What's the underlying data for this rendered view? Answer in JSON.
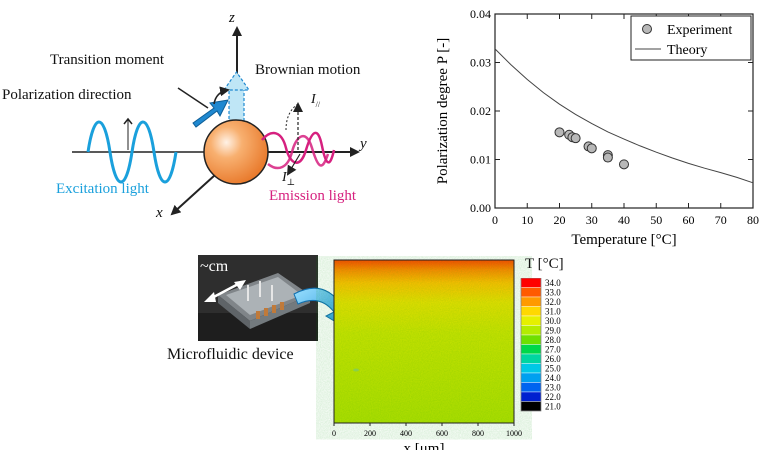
{
  "diagram": {
    "axis_z": "z",
    "axis_y": "y",
    "axis_x": "x",
    "transition_moment": "Transition moment",
    "brownian_motion": "Brownian motion",
    "polarization_direction": "Polarization direction",
    "excitation_light": "Excitation light",
    "emission_light": "Emission light",
    "i_parallel": "I",
    "i_parallel_sub": "//",
    "i_perp": "I",
    "i_perp_sub": "⊥",
    "colors": {
      "excitation": "#1aa0dc",
      "emission": "#d6207f",
      "molecule": "#f08a3c",
      "arrow_blue": "#1f88d0"
    }
  },
  "chart_data": [
    {
      "type": "scatter",
      "title": "",
      "xlabel": "Temperature [°C]",
      "ylabel": "Polarization degree P [-]",
      "xlim": [
        0,
        80
      ],
      "ylim": [
        0,
        0.04
      ],
      "xticks": [
        0,
        10,
        20,
        30,
        40,
        50,
        60,
        70,
        80
      ],
      "yticks": [
        0.0,
        0.01,
        0.02,
        0.03,
        0.04
      ],
      "ytick_labels": [
        "0.00",
        "0.01",
        "0.02",
        "0.03",
        "0.04"
      ],
      "legend_position": "top-right",
      "grid": false,
      "series": [
        {
          "name": "Experiment",
          "type": "scatter",
          "x": [
            20,
            23,
            24,
            25,
            29,
            30,
            35,
            35,
            40
          ],
          "y": [
            0.0156,
            0.0151,
            0.0146,
            0.0144,
            0.0127,
            0.0123,
            0.0109,
            0.0104,
            0.009
          ]
        },
        {
          "name": "Theory",
          "type": "line",
          "x": [
            0,
            5,
            10,
            15,
            20,
            25,
            30,
            35,
            40,
            45,
            50,
            55,
            60,
            65,
            70,
            75,
            80
          ],
          "y": [
            0.0328,
            0.0295,
            0.0265,
            0.0238,
            0.0214,
            0.0193,
            0.0174,
            0.0157,
            0.0142,
            0.0128,
            0.0115,
            0.0103,
            0.0092,
            0.0082,
            0.0073,
            0.0063,
            0.0052
          ]
        }
      ]
    },
    {
      "type": "heatmap",
      "xlabel": "x [μm]",
      "xlim": [
        0,
        1000
      ],
      "xticks": [
        0,
        200,
        400,
        600,
        800,
        1000
      ],
      "colorbar_title": "T [°C]",
      "colorbar_labels": [
        "34.0",
        "33.0",
        "32.0",
        "31.0",
        "30.0",
        "29.0",
        "28.0",
        "27.0",
        "26.0",
        "25.0",
        "24.0",
        "23.0",
        "22.0",
        "21.0"
      ],
      "colorbar_colors": [
        "#ff0000",
        "#ff5a00",
        "#ff9a00",
        "#ffd800",
        "#e6f000",
        "#b4ec00",
        "#6ee000",
        "#00d84a",
        "#00d6a0",
        "#00c8e6",
        "#00a0f0",
        "#0064f0",
        "#0020d0",
        "#000000"
      ]
    }
  ],
  "device": {
    "size_label": "~cm",
    "caption": "Microfluidic device"
  }
}
